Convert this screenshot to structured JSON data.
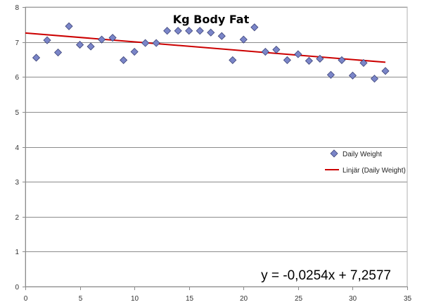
{
  "chart_data": {
    "type": "scatter",
    "title": "Kg Body Fat",
    "xlabel": "",
    "ylabel": "",
    "xlim": [
      0,
      35
    ],
    "ylim": [
      0,
      8
    ],
    "x_ticks": [
      0,
      5,
      10,
      15,
      20,
      25,
      30,
      35
    ],
    "y_ticks": [
      0,
      1,
      2,
      3,
      4,
      5,
      6,
      7,
      8
    ],
    "grid": "horizontal",
    "legend_position": "right",
    "series": [
      {
        "name": "Daily Weight",
        "marker": "diamond",
        "color": "#7a85c8",
        "x": [
          1,
          2,
          3,
          4,
          5,
          6,
          7,
          8,
          9,
          10,
          11,
          12,
          13,
          14,
          15,
          16,
          17,
          18,
          19,
          20,
          21,
          22,
          23,
          24,
          25,
          26,
          27,
          28,
          29,
          30,
          31,
          32,
          33
        ],
        "y": [
          6.55,
          7.05,
          6.7,
          7.45,
          6.92,
          6.87,
          7.07,
          7.12,
          6.48,
          6.72,
          6.97,
          6.97,
          7.32,
          7.32,
          7.32,
          7.32,
          7.27,
          7.17,
          6.48,
          7.07,
          7.42,
          6.72,
          6.78,
          6.48,
          6.65,
          6.46,
          6.52,
          6.06,
          6.48,
          6.04,
          6.4,
          5.95,
          6.17
        ]
      }
    ],
    "trendline": {
      "name": "Linjär (Daily Weight)",
      "color": "#cc0000",
      "slope": -0.0254,
      "intercept": 7.2577,
      "x_range": [
        0,
        33
      ],
      "equation_label": "y = -0,0254x + 7,2577"
    }
  }
}
